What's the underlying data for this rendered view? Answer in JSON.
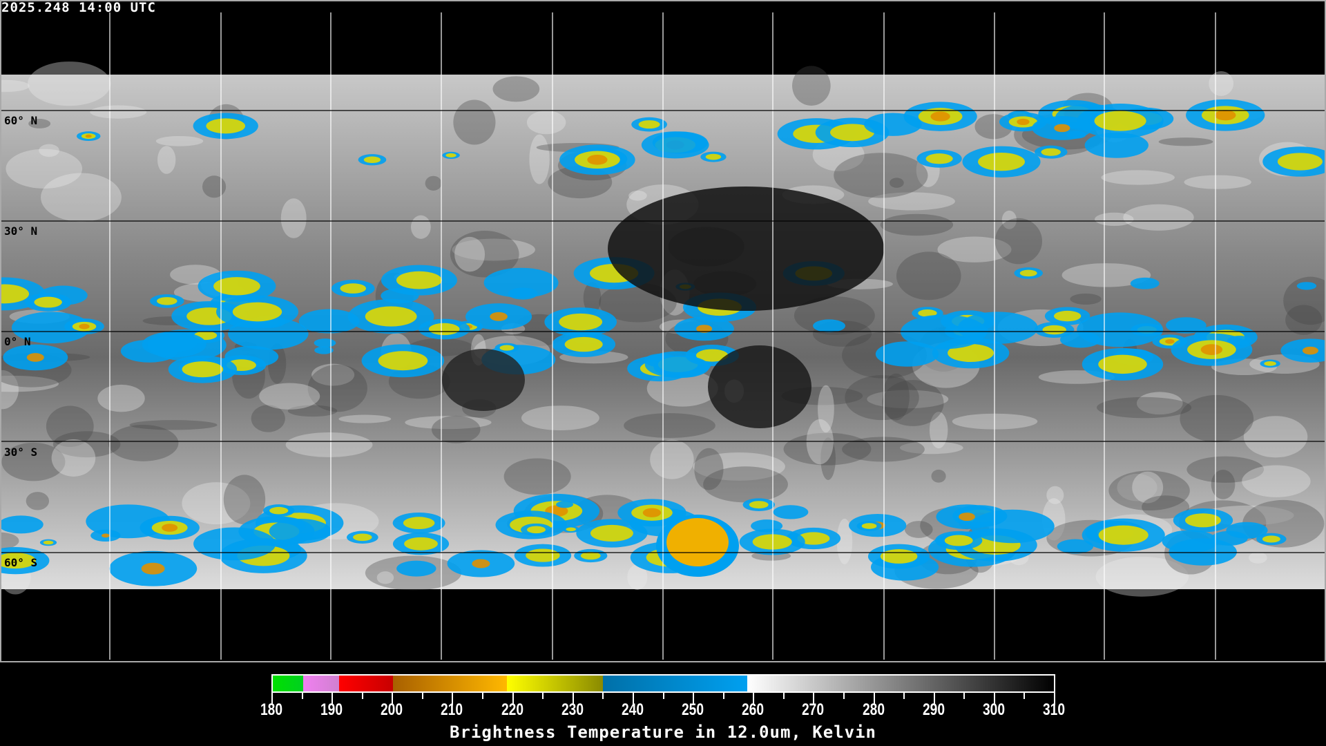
{
  "timestamp": "2025.248 14:00 UTC",
  "lat_labels": [
    "60° N",
    "30° N",
    "0° N",
    "30° S",
    "60° S"
  ],
  "colorbar": {
    "title": "Brightness Temperature in 12.0um, Kelvin",
    "ticks": [
      "180",
      "190",
      "200",
      "210",
      "220",
      "230",
      "240",
      "250",
      "260",
      "270",
      "280",
      "290",
      "300",
      "310"
    ],
    "range": [
      180,
      310
    ],
    "segments": [
      {
        "from": 180,
        "to": 185,
        "colors": [
          "#00e000",
          "#00d020"
        ]
      },
      {
        "from": 185,
        "to": 191,
        "colors": [
          "#f080f0",
          "#d080d0"
        ]
      },
      {
        "from": 191,
        "to": 200,
        "colors": [
          "#ff0000",
          "#c80000"
        ]
      },
      {
        "from": 200,
        "to": 219,
        "colors": [
          "#a86000",
          "#ffb800"
        ]
      },
      {
        "from": 219,
        "to": 235,
        "colors": [
          "#ffff00",
          "#8a8a00"
        ]
      },
      {
        "from": 235,
        "to": 259,
        "colors": [
          "#0070a8",
          "#00a0f0"
        ]
      },
      {
        "from": 259,
        "to": 310,
        "colors": [
          "#ffffff",
          "#000000"
        ]
      }
    ]
  }
}
